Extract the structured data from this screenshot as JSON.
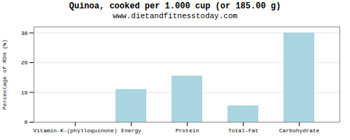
{
  "chart_data": {
    "type": "bar",
    "title": "Quinoa, cooked per 1.000 cup (or 185.00 g)",
    "subtitle": "www.dietandfitnesstoday.com",
    "categories": [
      "Vitamin-K-(phylloquinone)",
      "Energy",
      "Protein",
      "Total-Fat",
      "Carbohydrate"
    ],
    "values": [
      0,
      11,
      15.5,
      5.5,
      30
    ],
    "color": "#aad4e0",
    "ylabel": "Percentage of RDH (%)",
    "ylim": [
      0,
      32
    ],
    "yticks": [
      0,
      10,
      20,
      30
    ],
    "grid": true
  }
}
